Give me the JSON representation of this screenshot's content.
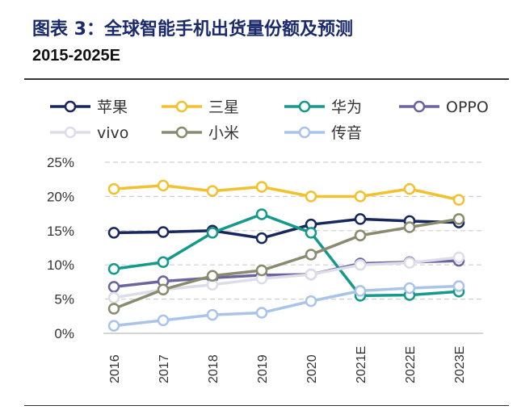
{
  "chart_data": {
    "type": "line",
    "title": "图表 3：全球智能手机出货量份额及预测",
    "subtitle": "2015-2025E",
    "categories": [
      "2016",
      "2017",
      "2018",
      "2019",
      "2020",
      "2021E",
      "2022E",
      "2023E"
    ],
    "y_ticks": [
      "0%",
      "5%",
      "10%",
      "15%",
      "20%",
      "25%"
    ],
    "ylim": [
      0,
      25
    ],
    "grid": "horizontal dashed",
    "legend_placement": "top",
    "series": [
      {
        "name": "苹果",
        "color": "#16285e",
        "values": [
          14.7,
          14.8,
          15.0,
          13.9,
          15.9,
          16.7,
          16.4,
          16.2
        ]
      },
      {
        "name": "三星",
        "color": "#f2c12e",
        "values": [
          21.1,
          21.6,
          20.8,
          21.4,
          20.0,
          20.0,
          21.1,
          19.5
        ]
      },
      {
        "name": "华为",
        "color": "#14998a",
        "values": [
          9.4,
          10.4,
          14.7,
          17.4,
          14.7,
          5.5,
          5.6,
          6.1
        ]
      },
      {
        "name": "OPPO",
        "color": "#6b64a0",
        "values": [
          6.8,
          7.6,
          8.1,
          8.5,
          8.6,
          10.2,
          10.4,
          10.6
        ]
      },
      {
        "name": "vivo",
        "color": "#dcdde8",
        "values": [
          5.2,
          6.4,
          7.1,
          8.0,
          8.6,
          10.0,
          10.3,
          11.1
        ]
      },
      {
        "name": "小米",
        "color": "#8a8a6e",
        "values": [
          3.6,
          6.4,
          8.4,
          9.2,
          11.5,
          14.3,
          15.5,
          16.7
        ]
      },
      {
        "name": "传音",
        "color": "#a9c3ea",
        "values": [
          1.1,
          1.9,
          2.7,
          3.0,
          4.7,
          6.2,
          6.6,
          6.9
        ]
      }
    ]
  }
}
